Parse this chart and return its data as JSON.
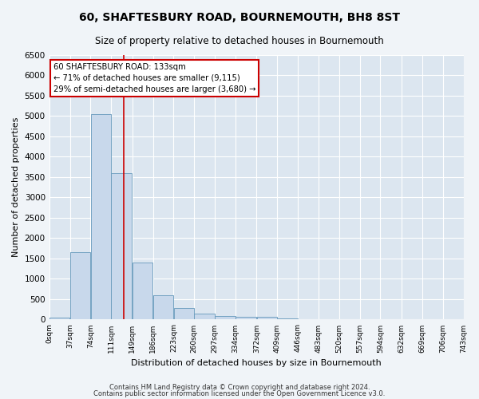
{
  "title": "60, SHAFTESBURY ROAD, BOURNEMOUTH, BH8 8ST",
  "subtitle": "Size of property relative to detached houses in Bournemouth",
  "xlabel": "Distribution of detached houses by size in Bournemouth",
  "ylabel": "Number of detached properties",
  "bar_color": "#c8d8eb",
  "bar_edge_color": "#6699bb",
  "background_color": "#dce6f0",
  "fig_background_color": "#f0f4f8",
  "grid_color": "#ffffff",
  "bin_edges": [
    0,
    37,
    74,
    111,
    149,
    186,
    223,
    260,
    297,
    334,
    372,
    409,
    446,
    483,
    520,
    557,
    594,
    632,
    669,
    706,
    743
  ],
  "bar_heights": [
    50,
    1650,
    5050,
    3600,
    1400,
    600,
    290,
    140,
    80,
    60,
    60,
    30,
    15,
    5,
    5,
    3,
    2,
    1,
    0,
    0
  ],
  "tick_labels": [
    "0sqm",
    "37sqm",
    "74sqm",
    "111sqm",
    "149sqm",
    "186sqm",
    "223sqm",
    "260sqm",
    "297sqm",
    "334sqm",
    "372sqm",
    "409sqm",
    "446sqm",
    "483sqm",
    "520sqm",
    "557sqm",
    "594sqm",
    "632sqm",
    "669sqm",
    "706sqm",
    "743sqm"
  ],
  "property_size": 133,
  "annotation_title": "60 SHAFTESBURY ROAD: 133sqm",
  "annotation_line1": "← 71% of detached houses are smaller (9,115)",
  "annotation_line2": "29% of semi-detached houses are larger (3,680) →",
  "vline_color": "#cc0000",
  "annotation_box_color": "#cc0000",
  "ylim": [
    0,
    6500
  ],
  "yticks": [
    0,
    500,
    1000,
    1500,
    2000,
    2500,
    3000,
    3500,
    4000,
    4500,
    5000,
    5500,
    6000,
    6500
  ],
  "footnote1": "Contains HM Land Registry data © Crown copyright and database right 2024.",
  "footnote2": "Contains public sector information licensed under the Open Government Licence v3.0."
}
